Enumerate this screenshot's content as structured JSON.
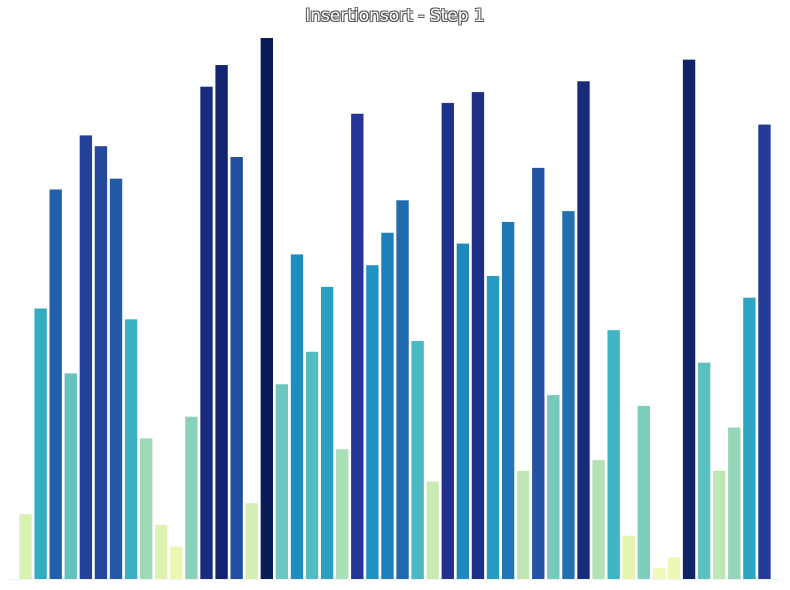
{
  "chart_data": {
    "type": "bar",
    "title": "Insertionsort - Step 1",
    "xlabel": "",
    "ylabel": "",
    "ylim": [
      0,
      100
    ],
    "grid": false,
    "legend": "none",
    "colormap": "YlGnBu",
    "values": [
      12,
      50,
      72,
      38,
      82,
      80,
      74,
      48,
      26,
      10,
      6,
      30,
      91,
      95,
      78,
      14,
      100,
      36,
      60,
      42,
      54,
      24,
      86,
      58,
      64,
      70,
      44,
      18,
      88,
      62,
      90,
      56,
      66,
      20,
      76,
      34,
      68,
      92,
      22,
      46,
      8,
      32,
      2,
      4,
      96,
      40,
      20,
      28,
      52,
      84
    ]
  }
}
